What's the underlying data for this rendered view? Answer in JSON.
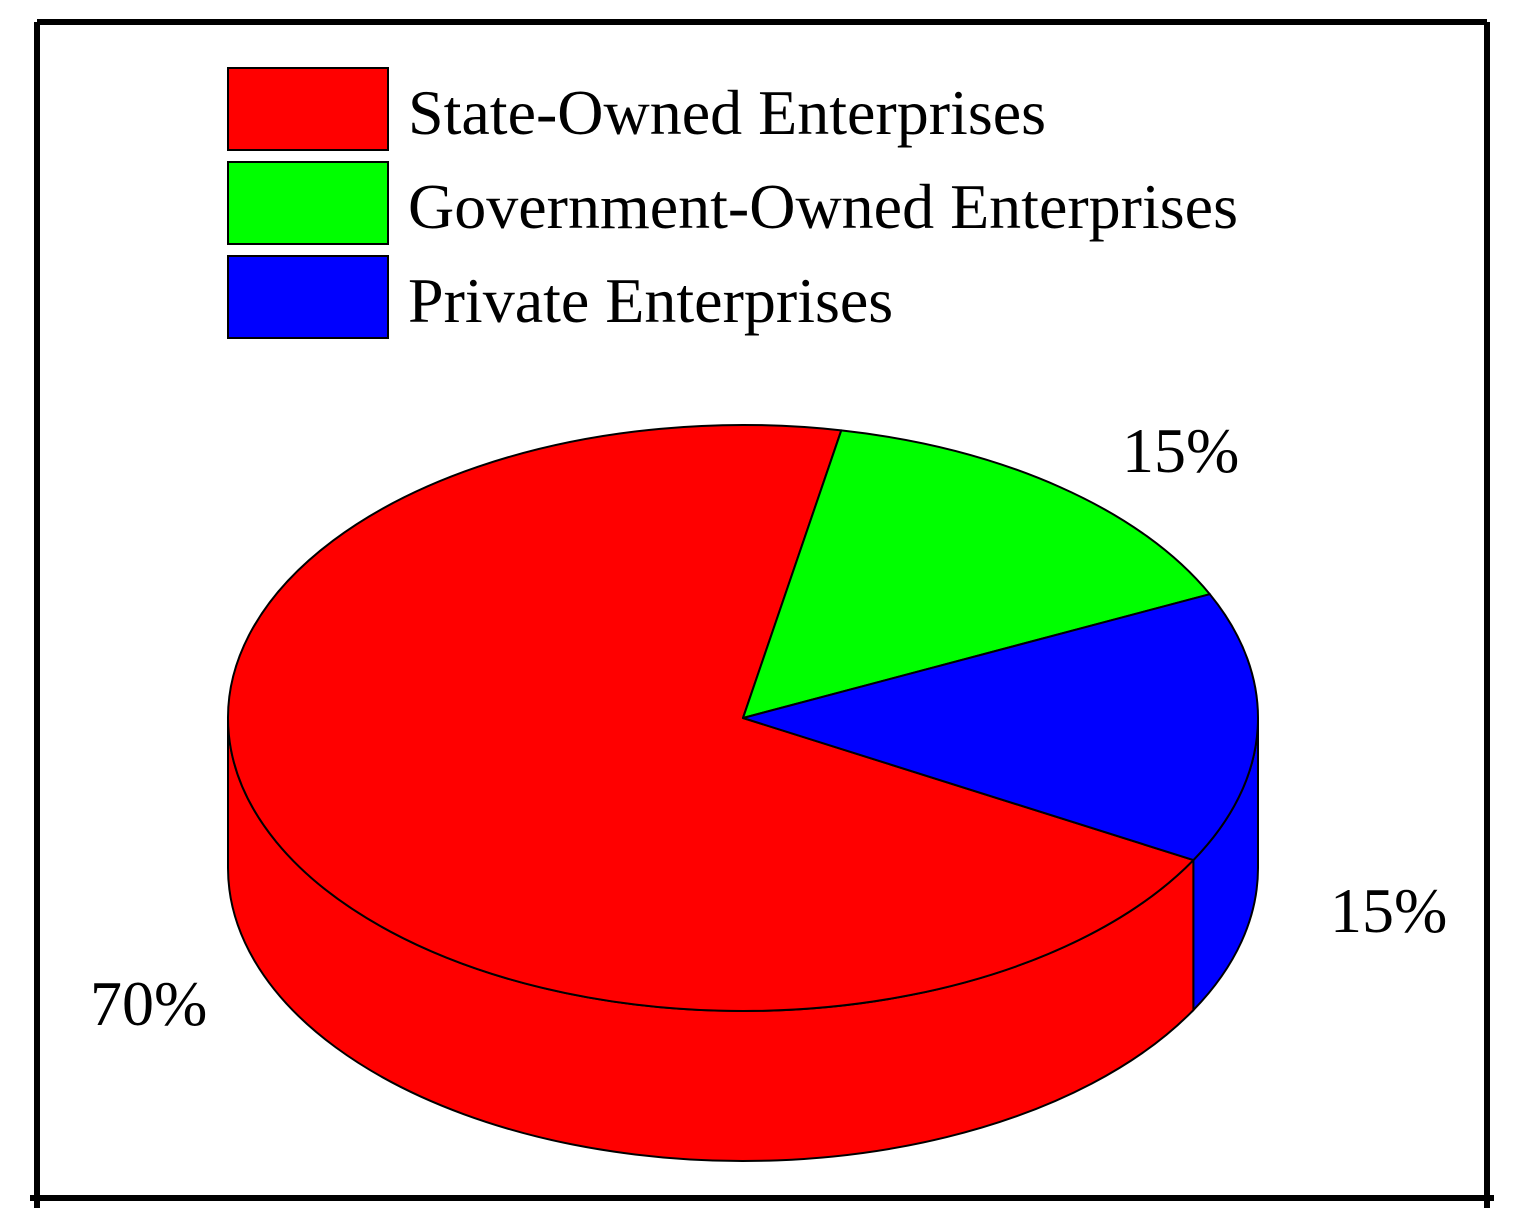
{
  "chart_data": {
    "type": "pie",
    "style": "3d",
    "slices": [
      {
        "label": "State-Owned Enterprises",
        "value": 70,
        "display": "70%",
        "color": "#ff0000"
      },
      {
        "label": "Government-Owned Enterprises",
        "value": 15,
        "display": "15%",
        "color": "#00ff00"
      },
      {
        "label": "Private Enterprises",
        "value": 15,
        "display": "15%",
        "color": "#0000ff"
      }
    ],
    "legend_position": "top",
    "grid": false
  }
}
